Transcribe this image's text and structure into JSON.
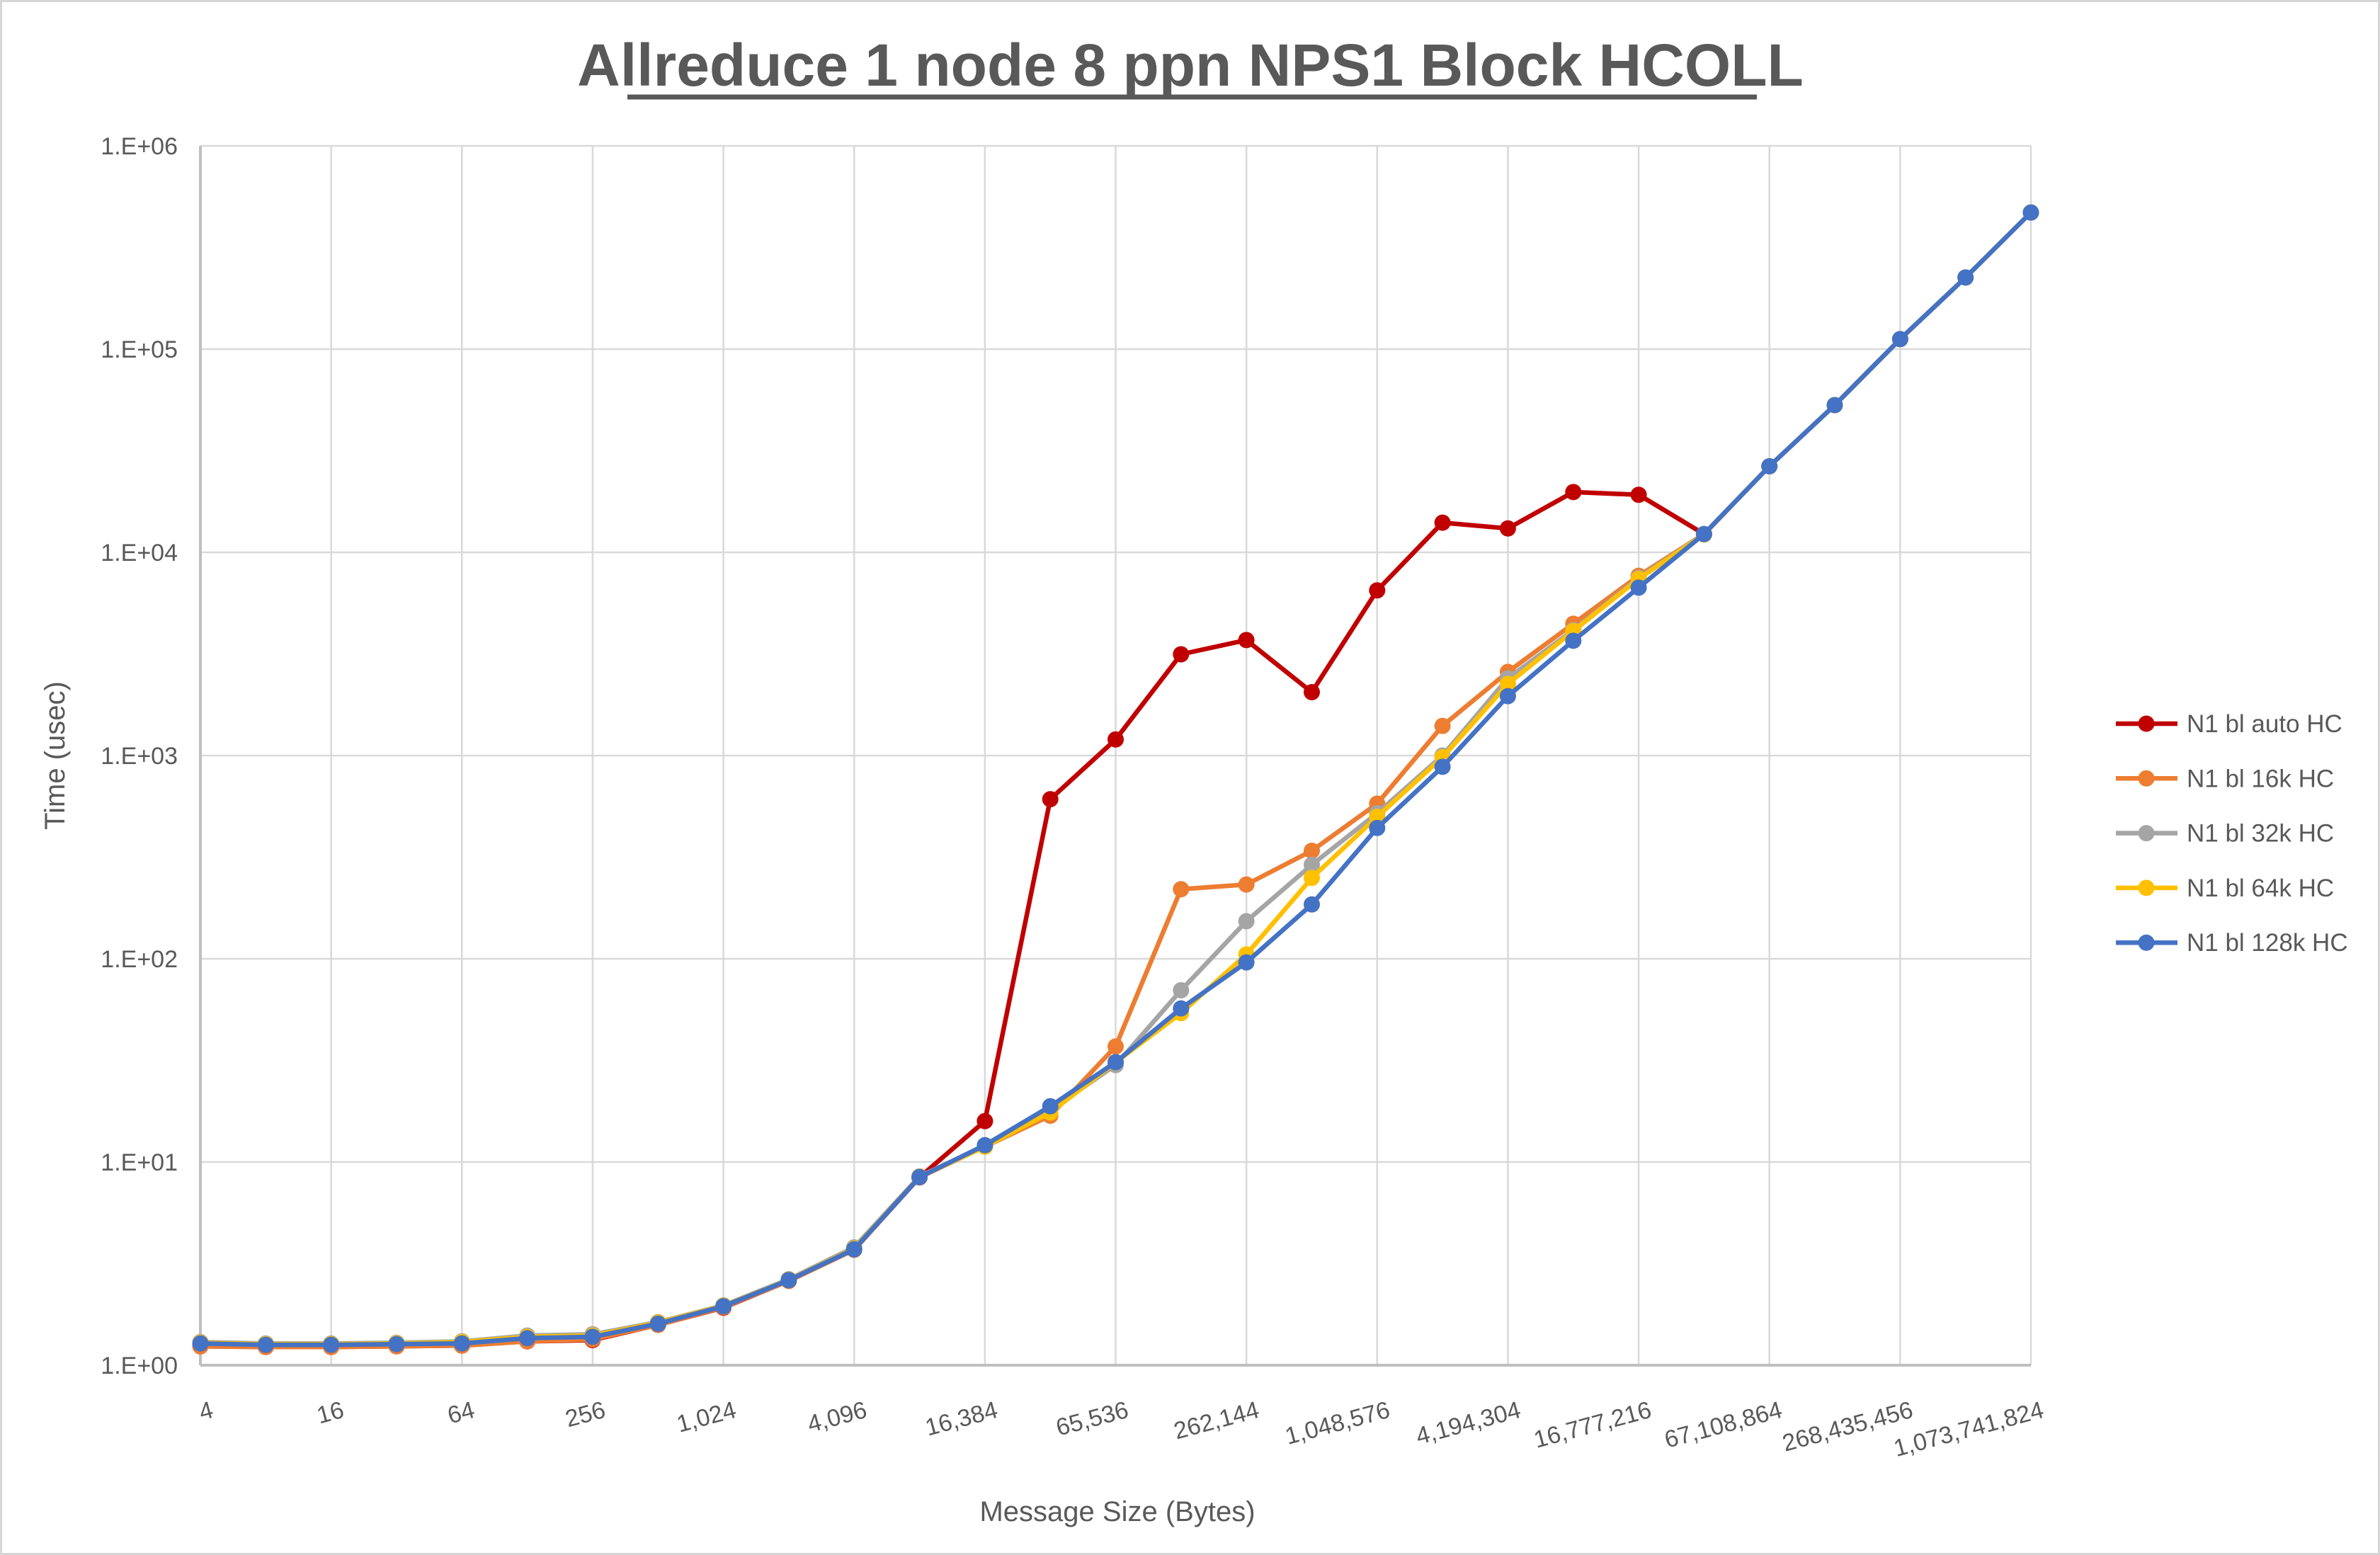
{
  "colors": {
    "text": "#595959",
    "gridline": "#d9d9d9",
    "axis_line": "#bfbfbf",
    "background": "#ffffff"
  },
  "chart_data": {
    "type": "line",
    "title": "Allreduce 1 node 8 ppn NPS1 Block HCOLL",
    "xlabel": "Message Size (Bytes)",
    "ylabel": "Time (usec)",
    "x_scale": "log2_categories",
    "y_scale": "log10",
    "ylim": [
      1,
      1000000
    ],
    "grid": true,
    "legend_position": "right",
    "y_tick_labels": [
      "1.E+00",
      "1.E+01",
      "1.E+02",
      "1.E+03",
      "1.E+04",
      "1.E+05",
      "1.E+06"
    ],
    "x_tick_labels": [
      "4",
      "16",
      "64",
      "256",
      "1,024",
      "4,096",
      "16,384",
      "65,536",
      "262,144",
      "1,048,576",
      "4,194,304",
      "16,777,216",
      "67,108,864",
      "268,435,456",
      "1,073,741,824"
    ],
    "categories": [
      4,
      8,
      16,
      32,
      64,
      128,
      256,
      512,
      1024,
      2048,
      4096,
      8192,
      16384,
      32768,
      65536,
      131072,
      262144,
      524288,
      1048576,
      2097152,
      4194304,
      8388608,
      16777216,
      33554432,
      67108864,
      134217728,
      268435456,
      536870912,
      1073741824
    ],
    "series": [
      {
        "name": "N1 bl auto HC",
        "color": "#C00000",
        "values": [
          1.24,
          1.23,
          1.23,
          1.24,
          1.25,
          1.31,
          1.33,
          1.58,
          1.92,
          2.6,
          3.7,
          8.4,
          15.9,
          610,
          1200,
          3150,
          3700,
          2050,
          6500,
          14000,
          13100,
          19800,
          19200,
          12300
        ]
      },
      {
        "name": "N1 bl 16k HC",
        "color": "#ED7D31",
        "values": [
          1.24,
          1.23,
          1.23,
          1.24,
          1.25,
          1.31,
          1.34,
          1.58,
          1.93,
          2.6,
          3.7,
          8.4,
          11.9,
          16.9,
          37,
          220,
          232,
          340,
          580,
          1400,
          2580,
          4450,
          7670,
          12300,
          26500,
          53000,
          112000,
          225000,
          470000
        ]
      },
      {
        "name": "N1 bl 32k HC",
        "color": "#A5A5A5",
        "values": [
          1.3,
          1.28,
          1.28,
          1.29,
          1.31,
          1.4,
          1.42,
          1.63,
          1.97,
          2.65,
          3.8,
          8.5,
          12.0,
          18.0,
          30,
          70,
          153,
          290,
          520,
          1000,
          2400,
          4140,
          7500,
          12300,
          26500,
          53000,
          112000,
          225000,
          470000
        ]
      },
      {
        "name": "N1 bl 64k HC",
        "color": "#FFC000",
        "values": [
          1.29,
          1.27,
          1.27,
          1.28,
          1.3,
          1.38,
          1.4,
          1.62,
          1.96,
          2.63,
          3.75,
          8.45,
          11.9,
          17.5,
          31,
          54,
          105,
          250,
          500,
          980,
          2250,
          4100,
          7400,
          12250,
          26500,
          53000,
          112000,
          225000,
          470000
        ]
      },
      {
        "name": "N1 bl 128k HC",
        "color": "#4472C4",
        "values": [
          1.28,
          1.26,
          1.26,
          1.27,
          1.28,
          1.36,
          1.38,
          1.6,
          1.95,
          2.62,
          3.72,
          8.42,
          12.1,
          18.8,
          31,
          57,
          96,
          185,
          440,
          880,
          1960,
          3670,
          6700,
          12300,
          26500,
          53000,
          112000,
          225000,
          470000
        ]
      }
    ]
  }
}
